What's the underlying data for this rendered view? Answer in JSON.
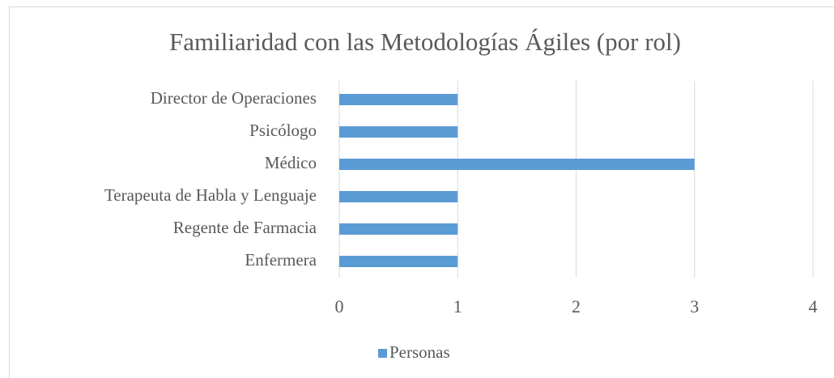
{
  "chart_data": {
    "type": "bar",
    "orientation": "horizontal",
    "title": "Familiaridad con las Metodologías Ágiles (por rol)",
    "categories": [
      "Director de Operaciones",
      "Psicólogo",
      "Médico",
      "Terapeuta de Habla y Lenguaje",
      "Regente de Farmacia",
      "Enfermera"
    ],
    "series": [
      {
        "name": "Personas",
        "color": "#5b9bd5",
        "values": [
          1,
          1,
          3,
          1,
          1,
          1
        ]
      }
    ],
    "xlim": [
      0,
      4
    ],
    "xticks": [
      0,
      1,
      2,
      3,
      4
    ],
    "grid": true,
    "legend": "bottom"
  }
}
